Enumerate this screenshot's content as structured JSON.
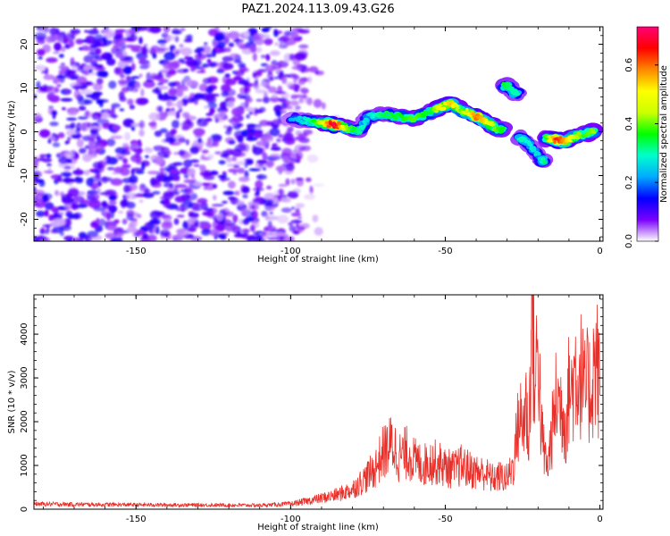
{
  "title": "PAZ1.2024.113.09.43.G26",
  "chart_data": [
    {
      "type": "heatmap",
      "xlabel": "Height of straight line (km)",
      "ylabel": "Frequency (Hz)",
      "xlim": [
        -183,
        1
      ],
      "ylim": [
        -25,
        24
      ],
      "xticks": [
        "-150",
        "-100",
        "-50",
        "0"
      ],
      "yticks": [
        "-20",
        "-10",
        "0",
        "10",
        "20"
      ],
      "colorbar": {
        "label": "Normalized spectral amplitude",
        "range": [
          0,
          0.73
        ],
        "ticks": [
          "0.0",
          "0.2",
          "0.4",
          "0.6"
        ],
        "colors": [
          "#ffffff",
          "#7a00ff",
          "#0000ff",
          "#00aaff",
          "#00ffcc",
          "#00ff00",
          "#ccff00",
          "#ffff00",
          "#ff8800",
          "#ff0000",
          "#ff0077"
        ]
      },
      "noise_region": {
        "x": [
          -183,
          -95
        ],
        "y": [
          -25,
          24
        ],
        "amplitude": [
          0.05,
          0.12
        ]
      },
      "signal_track": [
        {
          "x": -100,
          "y": 3.0,
          "a": 0.22
        },
        {
          "x": -95,
          "y": 2.5,
          "a": 0.28
        },
        {
          "x": -90,
          "y": 2.0,
          "a": 0.45
        },
        {
          "x": -86,
          "y": 1.6,
          "a": 0.72
        },
        {
          "x": -82,
          "y": 1.0,
          "a": 0.42
        },
        {
          "x": -78,
          "y": 0.0,
          "a": 0.32
        },
        {
          "x": -75,
          "y": 3.5,
          "a": 0.26
        },
        {
          "x": -70,
          "y": 4.0,
          "a": 0.34
        },
        {
          "x": -65,
          "y": 3.5,
          "a": 0.36
        },
        {
          "x": -60,
          "y": 3.0,
          "a": 0.4
        },
        {
          "x": -55,
          "y": 4.5,
          "a": 0.34
        },
        {
          "x": -52,
          "y": 5.5,
          "a": 0.48
        },
        {
          "x": -48,
          "y": 6.5,
          "a": 0.55
        },
        {
          "x": -45,
          "y": 5.0,
          "a": 0.4
        },
        {
          "x": -40,
          "y": 3.5,
          "a": 0.6
        },
        {
          "x": -36,
          "y": 2.0,
          "a": 0.5
        },
        {
          "x": -33,
          "y": 0.5,
          "a": 0.38
        },
        {
          "x": -30,
          "y": 10.5,
          "a": 0.34
        },
        {
          "x": -28,
          "y": 9.0,
          "a": 0.3
        },
        {
          "x": -25,
          "y": -1.5,
          "a": 0.3
        },
        {
          "x": -22,
          "y": -3.5,
          "a": 0.28
        },
        {
          "x": -19,
          "y": -6.5,
          "a": 0.26
        },
        {
          "x": -17,
          "y": -1.5,
          "a": 0.4
        },
        {
          "x": -14,
          "y": -1.8,
          "a": 0.65
        },
        {
          "x": -11,
          "y": -2.2,
          "a": 0.55
        },
        {
          "x": -8,
          "y": -1.0,
          "a": 0.45
        },
        {
          "x": -5,
          "y": -0.5,
          "a": 0.38
        },
        {
          "x": -2,
          "y": 0.0,
          "a": 0.42
        }
      ]
    },
    {
      "type": "line",
      "xlabel": "Height of straight line (km)",
      "ylabel": "SNR (10 * v/v)",
      "xlim": [
        -183,
        1
      ],
      "ylim": [
        0,
        4900
      ],
      "xticks": [
        "-150",
        "-100",
        "-50",
        "0"
      ],
      "yticks": [
        "0",
        "1000",
        "2000",
        "3000",
        "4000"
      ],
      "series": [
        {
          "color": "#e8302a",
          "x": [
            -183,
            -170,
            -150,
            -130,
            -110,
            -100,
            -95,
            -90,
            -85,
            -80,
            -76,
            -73,
            -70,
            -67,
            -65,
            -62,
            -60,
            -57,
            -55,
            -52,
            -50,
            -47,
            -45,
            -42,
            -40,
            -37,
            -35,
            -32,
            -30,
            -28,
            -26,
            -25,
            -24,
            -23,
            -22,
            -21,
            -20,
            -19,
            -18,
            -17,
            -16,
            -15,
            -14,
            -13,
            -12,
            -11,
            -10,
            -9,
            -8,
            -7,
            -6,
            -5,
            -4,
            -3,
            -2,
            -1,
            0
          ],
          "y": [
            120,
            110,
            100,
            95,
            90,
            120,
            180,
            250,
            330,
            450,
            700,
            900,
            1300,
            1500,
            1200,
            1300,
            1100,
            1000,
            1100,
            1050,
            950,
            900,
            1000,
            900,
            850,
            820,
            700,
            750,
            700,
            1000,
            2200,
            1800,
            2500,
            1500,
            4800,
            2600,
            4000,
            1800,
            1300,
            900,
            1500,
            2000,
            2600,
            2400,
            2300,
            1900,
            2800,
            2700,
            3200,
            3000,
            3100,
            2600,
            2800,
            2700,
            3200,
            3400,
            2600
          ]
        }
      ]
    }
  ]
}
